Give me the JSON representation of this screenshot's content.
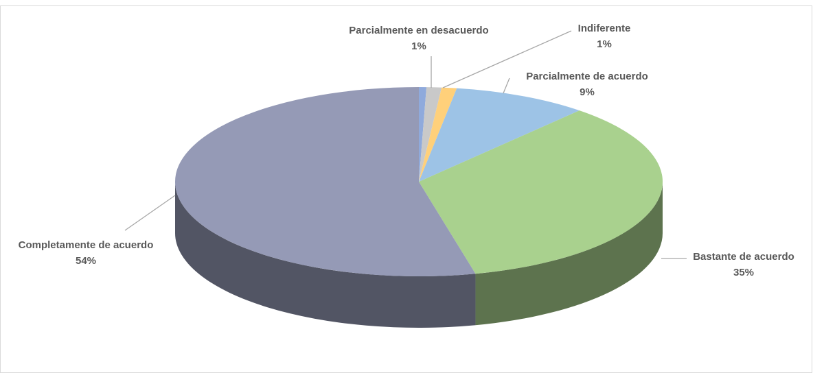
{
  "chart_data": {
    "type": "pie",
    "categories": [
      null,
      "Parcialmente en desacuerdo",
      "Indiferente",
      "Parcialmente de acuerdo",
      "Bastante de acuerdo",
      "Completamente de acuerdo"
    ],
    "values": [
      0.5,
      1,
      1,
      9,
      35,
      54
    ],
    "value_labels": [
      null,
      "1%",
      "1%",
      "9%",
      "35%",
      "54%"
    ],
    "colors": [
      "#8faadc",
      "#c9c9c9",
      "#ffd07a",
      "#9dc3e6",
      "#a9d18e",
      "#959ab6"
    ]
  }
}
